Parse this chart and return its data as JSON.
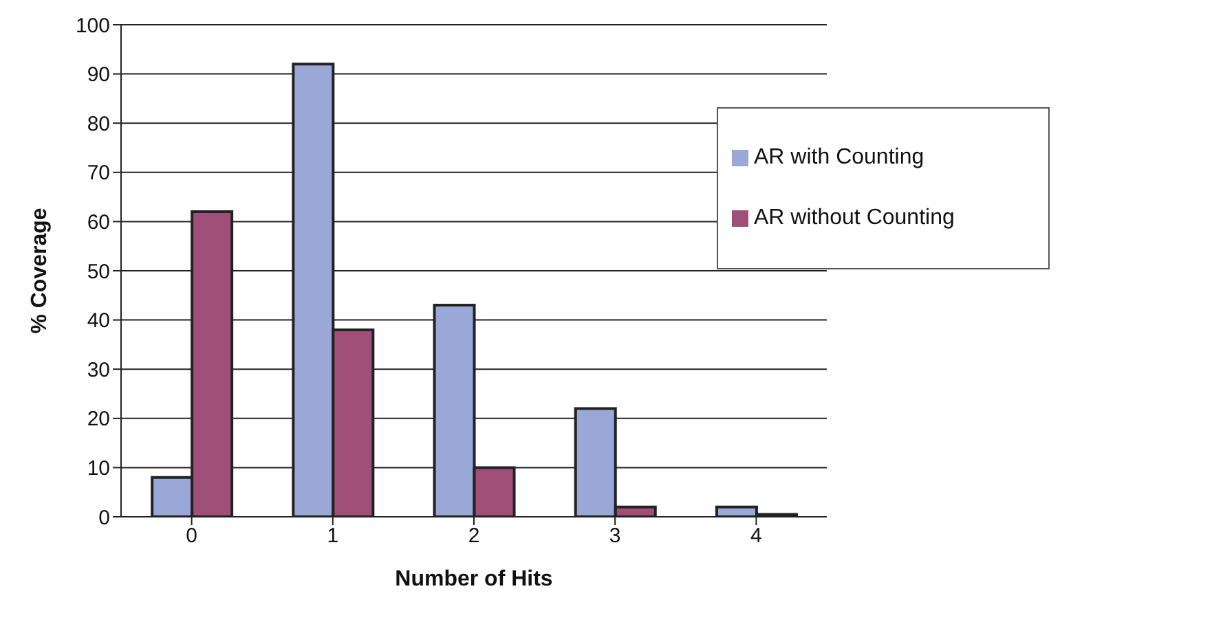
{
  "chart_data": {
    "type": "bar",
    "xlabel": "Number of Hits",
    "ylabel": "% Coverage",
    "categories": [
      "0",
      "1",
      "2",
      "3",
      "4"
    ],
    "series": [
      {
        "name": "AR with Counting",
        "color": "#99a8d6",
        "values": [
          8,
          92,
          43,
          22,
          2
        ]
      },
      {
        "name": "AR without Counting",
        "color": "#a05078",
        "values": [
          62,
          38,
          10,
          2,
          0.5
        ]
      }
    ],
    "ylim": [
      0,
      100
    ],
    "yticks": [
      0,
      10,
      20,
      30,
      40,
      50,
      60,
      70,
      80,
      90,
      100
    ],
    "grid": "y",
    "legend": "top right"
  }
}
